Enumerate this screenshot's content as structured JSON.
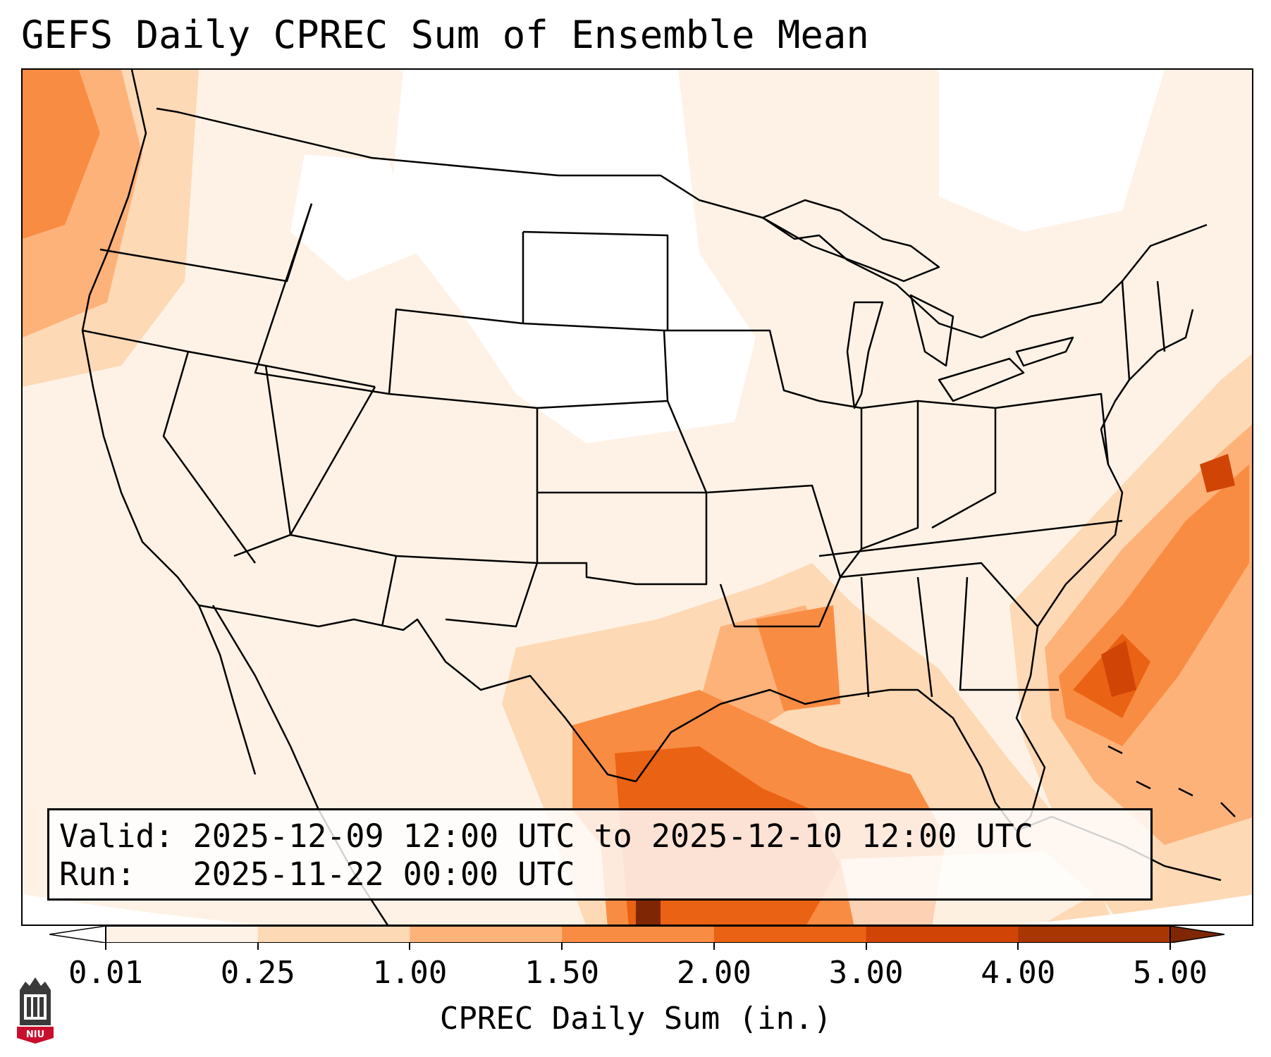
{
  "title": "GEFS Daily CPREC Sum of Ensemble Mean",
  "info": {
    "valid_label": "Valid:",
    "valid_value": "2025-12-09 12:00 UTC to 2025-12-10 12:00 UTC",
    "run_label": "Run:",
    "run_value": "2025-11-22 00:00 UTC"
  },
  "colorbar": {
    "label": "CPREC Daily Sum (in.)",
    "ticks": [
      "0.01",
      "0.25",
      "1.00",
      "1.50",
      "2.00",
      "3.00",
      "4.00",
      "5.00"
    ],
    "colors": [
      "#fef2e6",
      "#fdd9b5",
      "#fdb27a",
      "#f98c43",
      "#ea6213",
      "#d04506",
      "#a83603"
    ],
    "extend_min_color": "#ffffff",
    "extend_max_color": "#7f2704"
  },
  "map": {
    "projection": "Lambert Conformal (CONUS)",
    "background_color": "#fef2e6",
    "boundary_color": "#000000"
  },
  "logo": {
    "text": "NIU",
    "icon": "niu-tower-logo-icon"
  }
}
